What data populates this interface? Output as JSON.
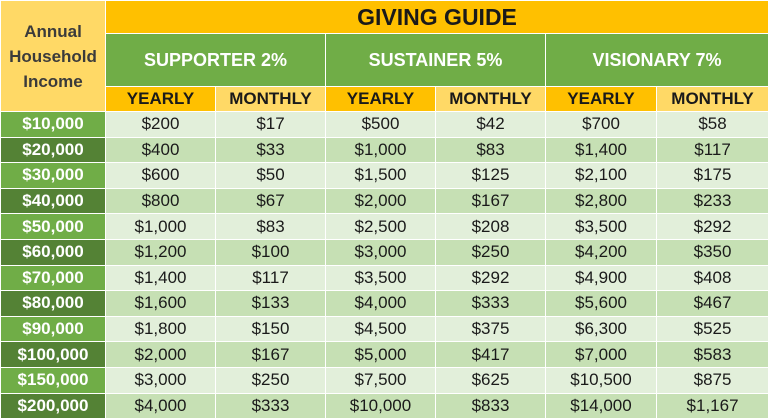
{
  "header": {
    "title": "GIVING GUIDE",
    "row_label": "Annual Household Income"
  },
  "groups": [
    {
      "name": "SUPPORTER 2%",
      "columns": [
        "YEARLY",
        "MONTHLY"
      ]
    },
    {
      "name": "SUSTAINER 5%",
      "columns": [
        "YEARLY",
        "MONTHLY"
      ]
    },
    {
      "name": "VISIONARY 7%",
      "columns": [
        "YEARLY",
        "MONTHLY"
      ]
    }
  ],
  "rows": [
    [
      "$10,000",
      "$200",
      "$17",
      "$500",
      "$42",
      "$700",
      "$58"
    ],
    [
      "$20,000",
      "$400",
      "$33",
      "$1,000",
      "$83",
      "$1,400",
      "$117"
    ],
    [
      "$30,000",
      "$600",
      "$50",
      "$1,500",
      "$125",
      "$2,100",
      "$175"
    ],
    [
      "$40,000",
      "$800",
      "$67",
      "$2,000",
      "$167",
      "$2,800",
      "$233"
    ],
    [
      "$50,000",
      "$1,000",
      "$83",
      "$2,500",
      "$208",
      "$3,500",
      "$292"
    ],
    [
      "$60,000",
      "$1,200",
      "$100",
      "$3,000",
      "$250",
      "$4,200",
      "$350"
    ],
    [
      "$70,000",
      "$1,400",
      "$117",
      "$3,500",
      "$292",
      "$4,900",
      "$408"
    ],
    [
      "$80,000",
      "$1,600",
      "$133",
      "$4,000",
      "$333",
      "$5,600",
      "$467"
    ],
    [
      "$90,000",
      "$1,800",
      "$150",
      "$4,500",
      "$375",
      "$6,300",
      "$525"
    ],
    [
      "$100,000",
      "$2,000",
      "$167",
      "$5,000",
      "$417",
      "$7,000",
      "$583"
    ],
    [
      "$150,000",
      "$3,000",
      "$250",
      "$7,500",
      "$625",
      "$10,500",
      "$875"
    ],
    [
      "$200,000",
      "$4,000",
      "$333",
      "$10,000",
      "$833",
      "$14,000",
      "$1,167"
    ]
  ]
}
